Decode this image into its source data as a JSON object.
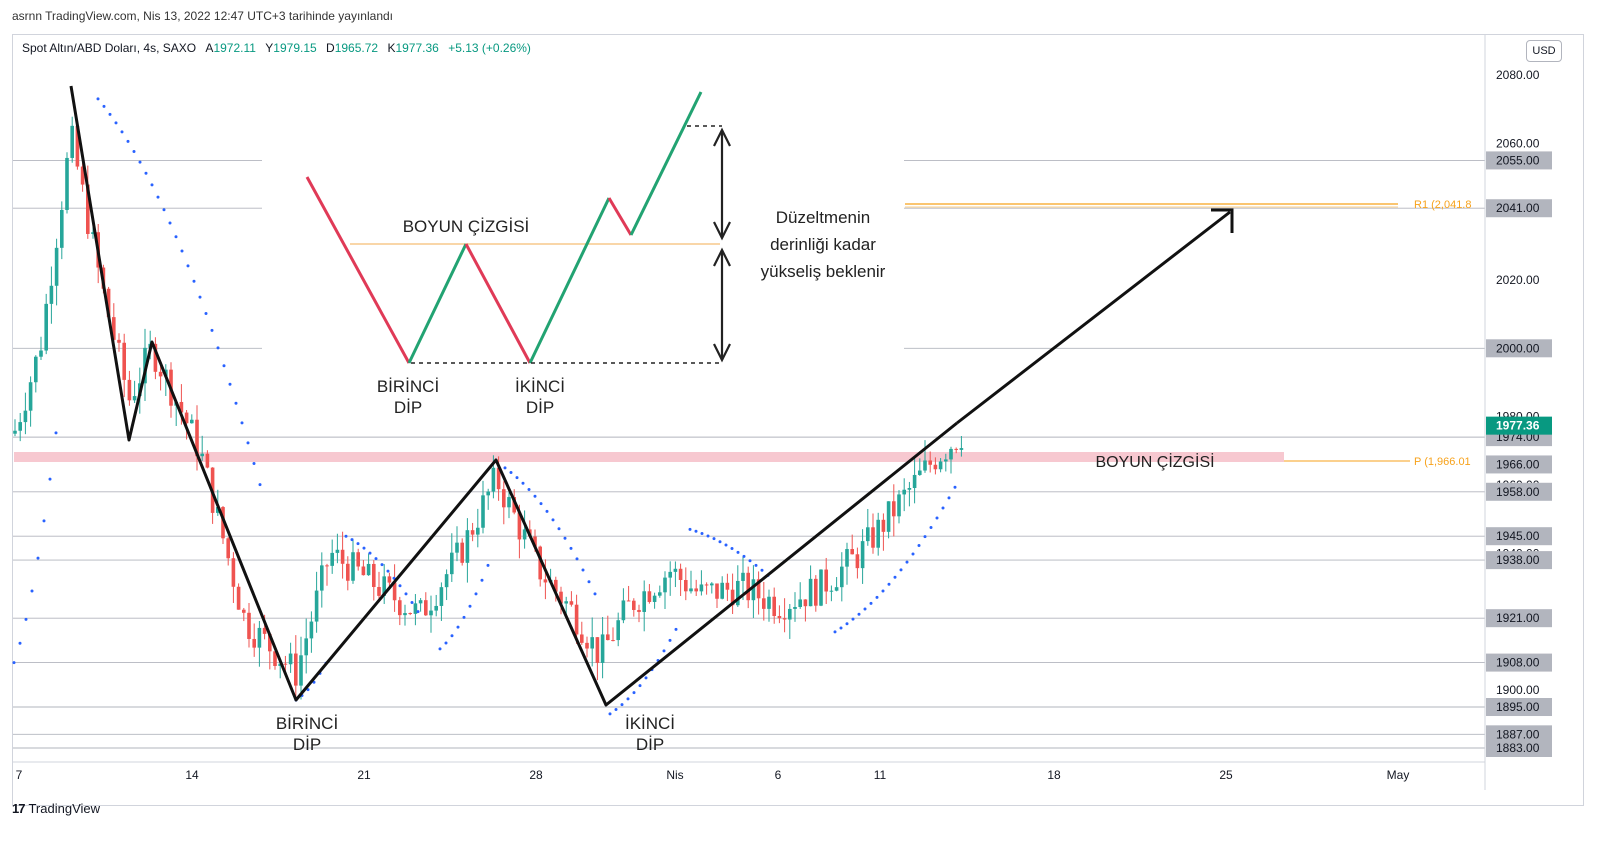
{
  "caption": "asrnn TradingView.com, Nis 13, 2022 12:47 UTC+3 tarihinde yayınlandı",
  "legend": {
    "symbol": "Spot Altın/ABD Doları, 4s, SAXO",
    "open_label": "A",
    "open": "1972.11",
    "high_label": "Y",
    "high": "1979.15",
    "low_label": "D",
    "low": "1965.72",
    "close_label": "K",
    "close": "1977.36",
    "change": "+5.13 (+0.26%)"
  },
  "currency_button": "USD",
  "footer": {
    "logo_mark": "17",
    "brand": "TradingView"
  },
  "colors": {
    "up": "#26a69a",
    "down": "#ef5350",
    "price_tag": "#089981",
    "level_tag": "#b2b5be",
    "pivot": "#f7a21b",
    "zone": "#f4b6c0",
    "dots": "#2962ff"
  },
  "price_scale": {
    "ticks": [
      "2080.00",
      "2060.00",
      "2020.00",
      "1900.00"
    ],
    "tagged_levels": [
      "2055.00",
      "2041.00",
      "2000.00",
      "1974.00",
      "1966.00",
      "1958.00",
      "1945.00",
      "1938.00",
      "1921.00",
      "1908.00",
      "1895.00",
      "1887.00",
      "1883.00"
    ],
    "hidden_ticks": [
      "1980.00",
      "1960.00",
      "1940.00"
    ],
    "last_price": "1977.36"
  },
  "time_scale": [
    "7",
    "14",
    "21",
    "28",
    "Nis",
    "6",
    "11",
    "18",
    "25",
    "May"
  ],
  "pivots": {
    "r1": "R1 (2,041.8",
    "p": "P (1,966.01"
  },
  "annotations": {
    "neckline_main": "BOYUN ÇİZGİSİ",
    "first_bottom_1": "BİRİNCİ",
    "first_bottom_2": "DİP",
    "second_bottom_1": "İKİNCİ",
    "second_bottom_2": "DİP"
  },
  "diagram": {
    "neckline": "BOYUN ÇİZGİSİ",
    "first_1": "BİRİNCİ",
    "first_2": "DİP",
    "second_1": "İKİNCİ",
    "second_2": "DİP",
    "note_1": "Düzeltmenin",
    "note_2": "derinliği kadar",
    "note_3": "yükseliş beklenir"
  }
}
